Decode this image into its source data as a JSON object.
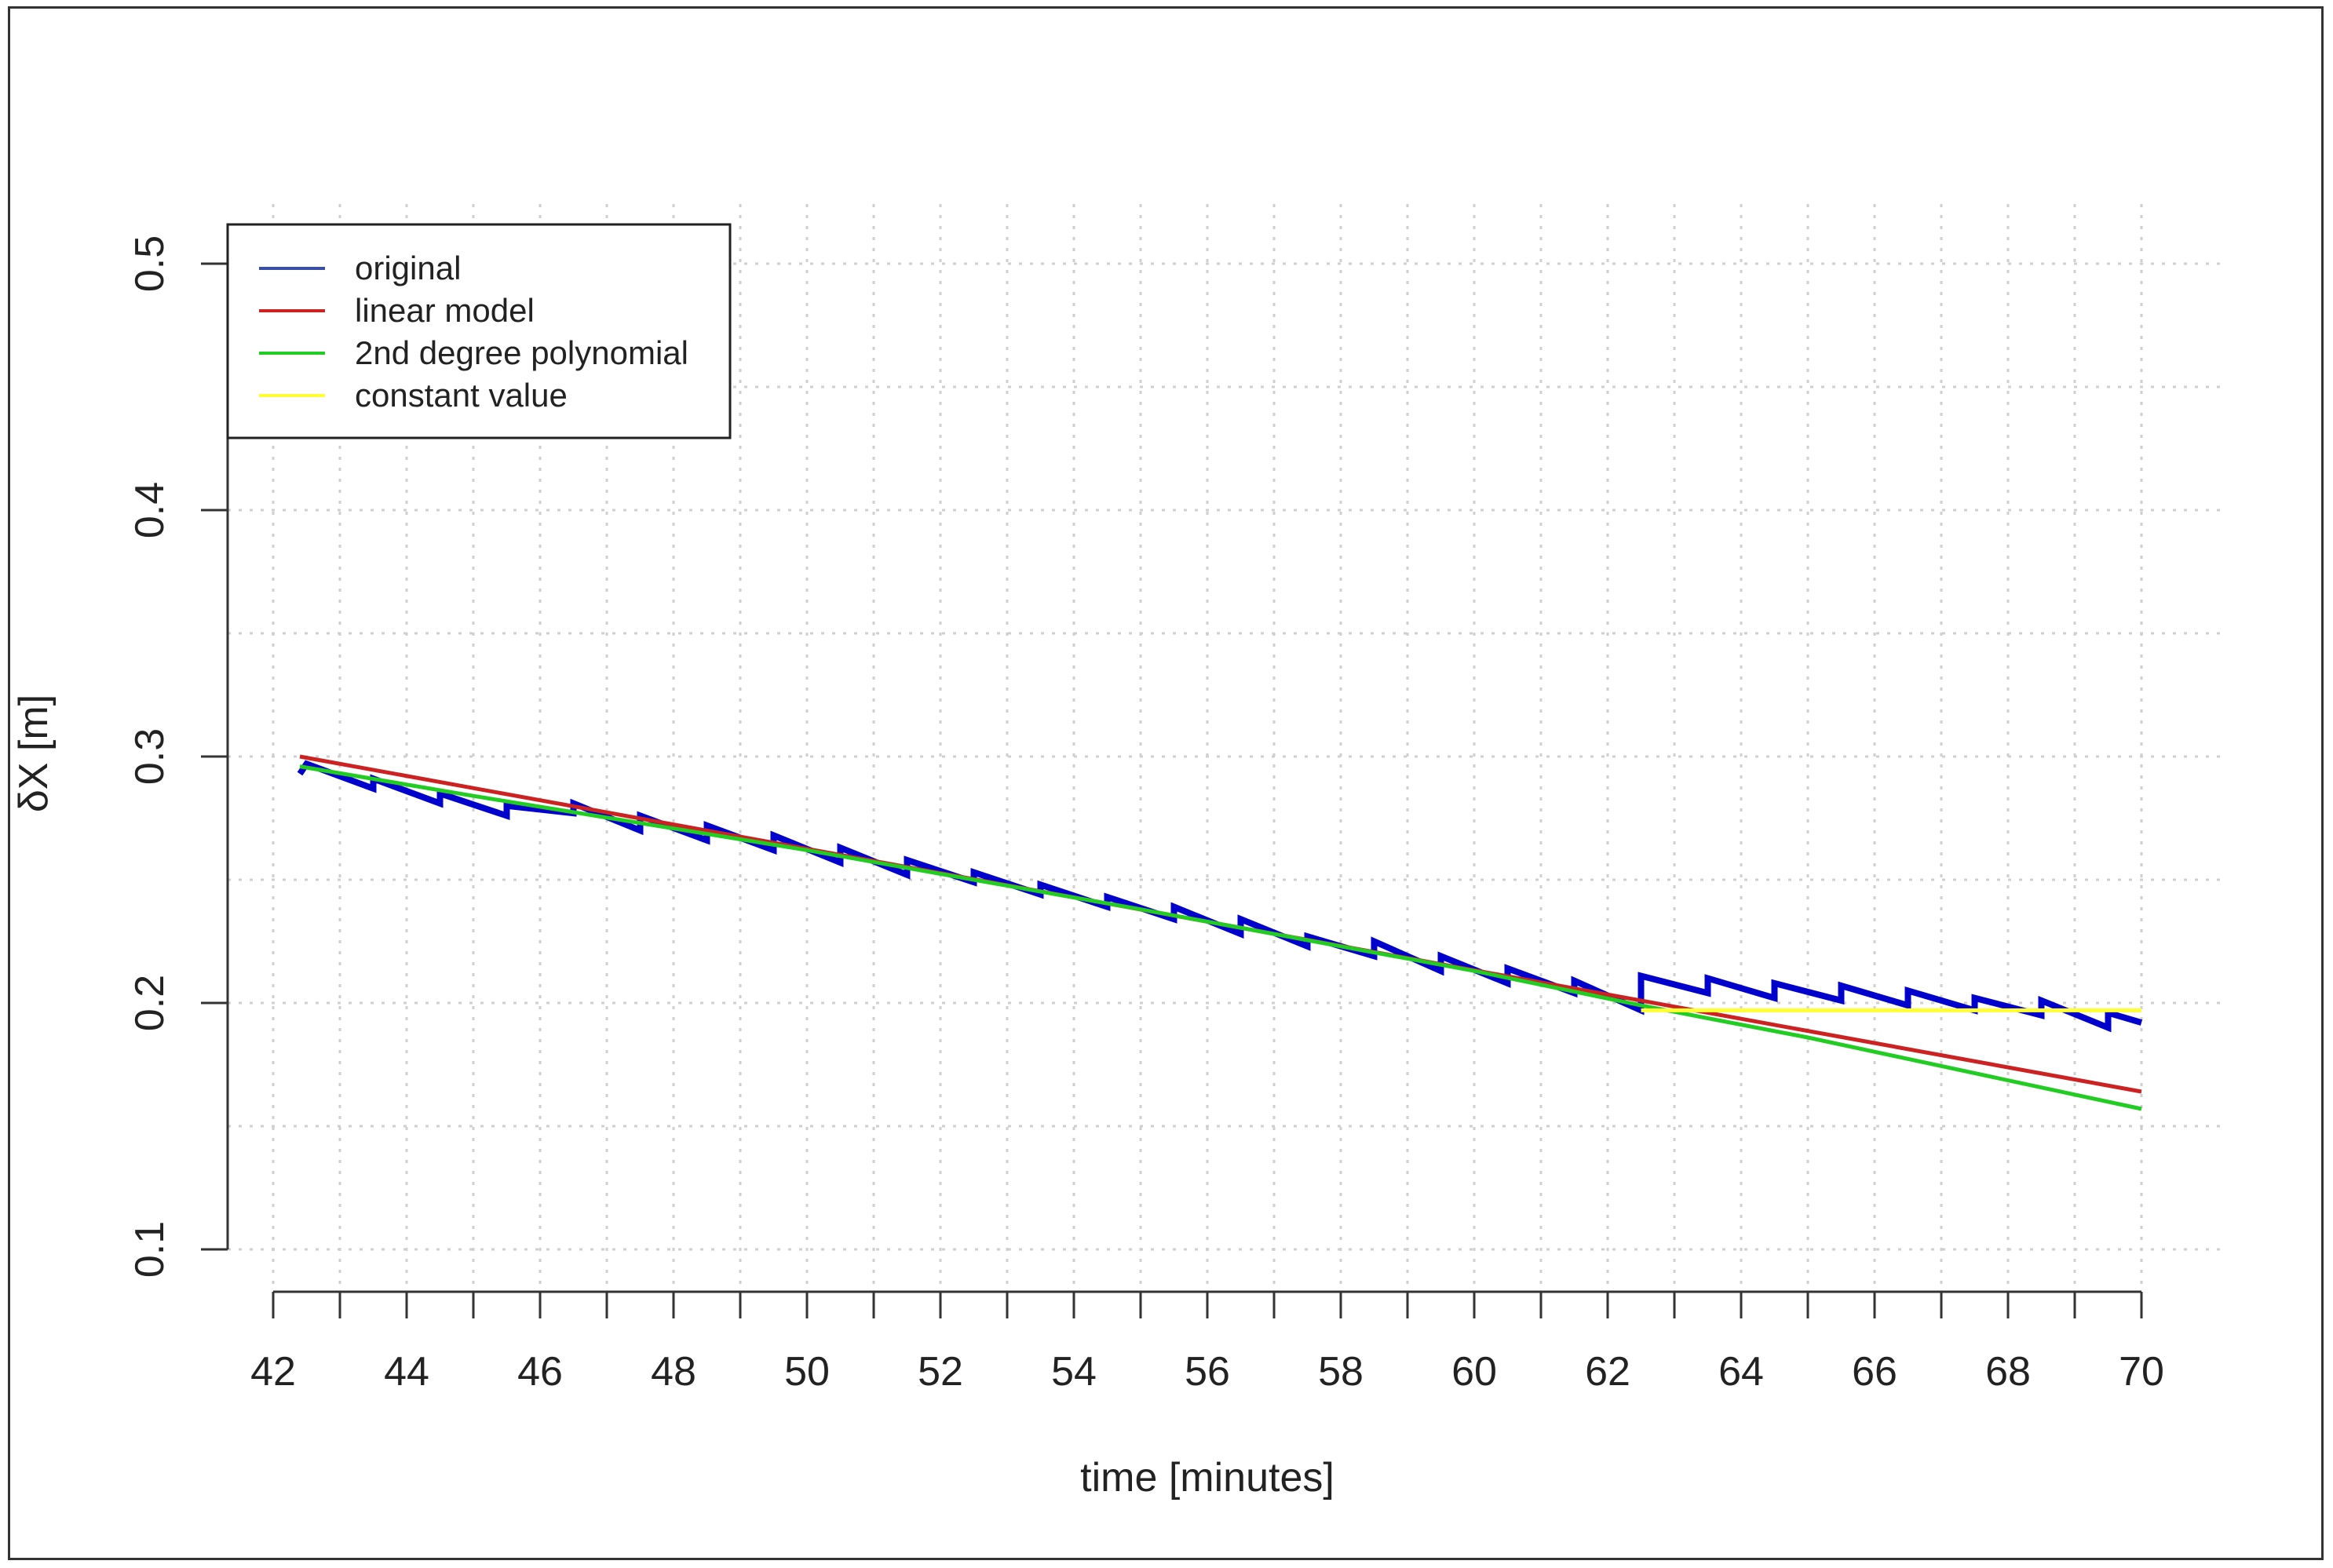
{
  "chart_data": {
    "type": "line",
    "title": "",
    "xlabel": "time [minutes]",
    "ylabel": "δX [m]",
    "xlim": [
      41.5,
      70.5
    ],
    "ylim": [
      0.085,
      0.52
    ],
    "grid": true,
    "legend_position": "top-left",
    "x_ticks": [
      42,
      44,
      46,
      48,
      50,
      52,
      54,
      56,
      58,
      60,
      62,
      64,
      66,
      68,
      70
    ],
    "x_minor_ticks": [
      43,
      45,
      47,
      49,
      51,
      53,
      55,
      57,
      59,
      61,
      63,
      65,
      67,
      69
    ],
    "x_tick_labels": [
      "42",
      "44",
      "46",
      "48",
      "50",
      "52",
      "54",
      "56",
      "58",
      "60",
      "62",
      "64",
      "66",
      "68",
      "70"
    ],
    "y_ticks": [
      0.1,
      0.2,
      0.3,
      0.4,
      0.5
    ],
    "y_tick_labels": [
      "0.1",
      "0.2",
      "0.3",
      "0.4",
      "0.5"
    ],
    "series": [
      {
        "name": "original",
        "color": "#0000cc",
        "x": [
          42.4,
          42.5,
          43.5,
          43.5,
          44.5,
          44.5,
          45.5,
          45.5,
          46.5,
          46.5,
          47.5,
          47.5,
          48.5,
          48.5,
          49.5,
          49.5,
          50.5,
          50.5,
          51.5,
          51.5,
          52.5,
          52.5,
          53.5,
          53.5,
          54.5,
          54.5,
          55.5,
          55.5,
          56.5,
          56.5,
          57.5,
          57.5,
          58.5,
          58.5,
          59.5,
          59.5,
          60.5,
          60.5,
          61.5,
          61.5,
          62.5,
          62.5,
          63.5,
          63.5,
          64.5,
          64.5,
          65.5,
          65.5,
          66.5,
          66.5,
          67.5,
          67.5,
          68.5,
          68.5,
          69.5,
          69.5,
          70.0
        ],
        "y": [
          0.293,
          0.297,
          0.287,
          0.291,
          0.281,
          0.285,
          0.276,
          0.28,
          0.277,
          0.281,
          0.27,
          0.276,
          0.266,
          0.272,
          0.262,
          0.268,
          0.257,
          0.263,
          0.252,
          0.258,
          0.249,
          0.253,
          0.244,
          0.248,
          0.239,
          0.243,
          0.234,
          0.239,
          0.228,
          0.234,
          0.223,
          0.227,
          0.219,
          0.225,
          0.213,
          0.219,
          0.208,
          0.214,
          0.204,
          0.209,
          0.197,
          0.211,
          0.204,
          0.21,
          0.202,
          0.208,
          0.201,
          0.207,
          0.199,
          0.205,
          0.197,
          0.202,
          0.195,
          0.201,
          0.19,
          0.196,
          0.192
        ]
      },
      {
        "name": "linear model",
        "color": "#cc2222",
        "x": [
          42.4,
          70.0
        ],
        "y": [
          0.3,
          0.164
        ]
      },
      {
        "name": "2nd degree polynomial",
        "color": "#22cc22",
        "x": [
          42.4,
          45,
          50,
          55,
          60,
          62.5,
          65,
          70.0
        ],
        "y": [
          0.296,
          0.284,
          0.262,
          0.238,
          0.213,
          0.199,
          0.186,
          0.157
        ]
      },
      {
        "name": "constant value",
        "color": "#ffff33",
        "x": [
          62.5,
          70.0
        ],
        "y": [
          0.197,
          0.197
        ]
      }
    ]
  }
}
